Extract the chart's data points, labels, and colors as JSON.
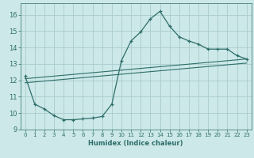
{
  "title": "",
  "xlabel": "Humidex (Indice chaleur)",
  "background_color": "#cce8e8",
  "grid_color": "#aacccc",
  "line_color": "#2e6e6a",
  "xlim": [
    -0.5,
    23.5
  ],
  "ylim": [
    9,
    16.7
  ],
  "yticks": [
    9,
    10,
    11,
    12,
    13,
    14,
    15,
    16
  ],
  "xticks": [
    0,
    1,
    2,
    3,
    4,
    5,
    6,
    7,
    8,
    9,
    10,
    11,
    12,
    13,
    14,
    15,
    16,
    17,
    18,
    19,
    20,
    21,
    22,
    23
  ],
  "curve1_x": [
    0,
    1,
    2,
    3,
    4,
    5,
    6,
    7,
    8,
    9,
    10,
    11,
    12,
    13,
    14,
    15,
    16,
    17,
    18,
    19,
    20,
    21,
    22,
    23
  ],
  "curve1_y": [
    12.25,
    10.55,
    10.25,
    9.85,
    9.6,
    9.6,
    9.65,
    9.7,
    9.8,
    10.55,
    13.2,
    14.4,
    14.95,
    15.75,
    16.2,
    15.3,
    14.65,
    14.4,
    14.2,
    13.9,
    13.9,
    13.9,
    13.5,
    13.3
  ],
  "curve2_x": [
    0,
    23
  ],
  "curve2_y": [
    12.1,
    13.3
  ],
  "curve3_x": [
    0,
    23
  ],
  "curve3_y": [
    11.85,
    13.05
  ]
}
